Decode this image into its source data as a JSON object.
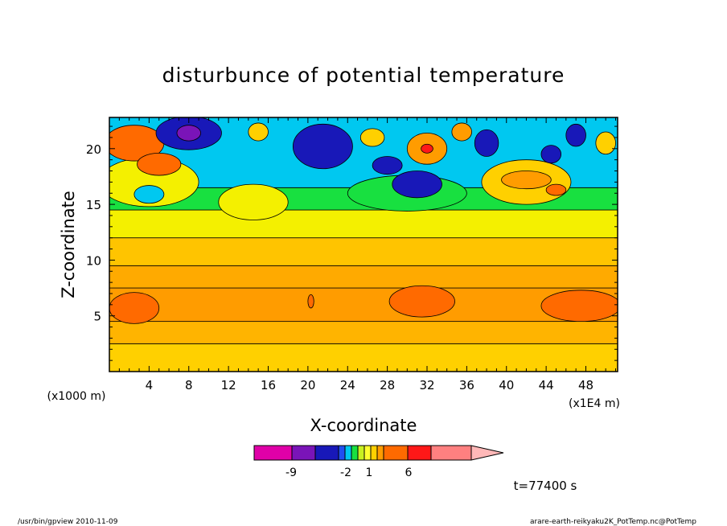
{
  "chart_data": {
    "type": "heatmap",
    "title": "disturbunce of potential temperature",
    "xlabel": "X-coordinate",
    "ylabel": "Z-coordinate",
    "x_unit_left": "(x1000 m)",
    "x_unit_right": "(x1E4 m)",
    "xlim": [
      0,
      51.2
    ],
    "ylim": [
      0,
      22.8
    ],
    "x_ticks": [
      "4",
      "8",
      "12",
      "16",
      "20",
      "24",
      "28",
      "32",
      "36",
      "40",
      "44",
      "48"
    ],
    "y_ticks": [
      "5",
      "10",
      "15",
      "20"
    ],
    "colorbar": {
      "tick_labels": [
        "-9",
        "-2",
        "1",
        "6"
      ],
      "colors": [
        "#e000a8",
        "#7a14b8",
        "#1818b8",
        "#2050f0",
        "#00c8f0",
        "#18e040",
        "#c8f020",
        "#ffff30",
        "#ffd000",
        "#ff9c00",
        "#ff6a00",
        "#ff1818",
        "#ff8080",
        "#ffb8b8"
      ]
    },
    "time_label": "t=77400 s",
    "footer_left": "/usr/bin/gpview  2010-11-09",
    "footer_right": "arare-earth-reikyaku2K_PotTemp.nc@PotTemp",
    "bands": [
      {
        "z_min": 0.0,
        "z_max": 2.5,
        "color": "#ffd000"
      },
      {
        "z_min": 2.5,
        "z_max": 4.5,
        "color": "#ffb400"
      },
      {
        "z_min": 4.5,
        "z_max": 7.5,
        "color": "#ff9c00"
      },
      {
        "z_min": 7.5,
        "z_max": 9.5,
        "color": "#ffaa00"
      },
      {
        "z_min": 9.5,
        "z_max": 12.0,
        "color": "#ffc400"
      },
      {
        "z_min": 12.0,
        "z_max": 14.5,
        "color": "#f4f000"
      },
      {
        "z_min": 14.5,
        "z_max": 16.5,
        "color": "#18e040"
      },
      {
        "z_min": 16.5,
        "z_max": 22.8,
        "color": "#00c8f0"
      }
    ],
    "blobs": [
      {
        "x": 2.5,
        "z": 5.7,
        "rx": 2.5,
        "rz": 1.4,
        "color": "#ff6a00"
      },
      {
        "x": 31.5,
        "z": 6.3,
        "rx": 3.3,
        "rz": 1.4,
        "color": "#ff6a00"
      },
      {
        "x": 47.5,
        "z": 5.9,
        "rx": 4.0,
        "rz": 1.4,
        "color": "#ff6a00"
      },
      {
        "x": 20.3,
        "z": 6.3,
        "rx": 0.3,
        "rz": 0.6,
        "color": "#ff6a00"
      },
      {
        "x": 4.0,
        "z": 17.0,
        "rx": 5.0,
        "rz": 2.2,
        "color": "#f4f000"
      },
      {
        "x": 14.5,
        "z": 15.2,
        "rx": 3.5,
        "rz": 1.6,
        "color": "#f4f000"
      },
      {
        "x": 30.0,
        "z": 16.0,
        "rx": 6.0,
        "rz": 1.6,
        "color": "#18e040"
      },
      {
        "x": 42.0,
        "z": 17.0,
        "rx": 4.5,
        "rz": 2.0,
        "color": "#ffd000"
      },
      {
        "x": 2.5,
        "z": 20.5,
        "rx": 3.0,
        "rz": 1.6,
        "color": "#ff6a00"
      },
      {
        "x": 5.0,
        "z": 18.6,
        "rx": 2.2,
        "rz": 1.0,
        "color": "#ff6a00"
      },
      {
        "x": 4.0,
        "z": 15.9,
        "rx": 1.5,
        "rz": 0.8,
        "color": "#00c8f0"
      },
      {
        "x": 8.0,
        "z": 21.4,
        "rx": 3.3,
        "rz": 1.5,
        "color": "#1818b8"
      },
      {
        "x": 8.0,
        "z": 21.4,
        "rx": 1.2,
        "rz": 0.7,
        "color": "#7a14b8"
      },
      {
        "x": 21.5,
        "z": 20.2,
        "rx": 3.0,
        "rz": 2.0,
        "color": "#1818b8"
      },
      {
        "x": 28.0,
        "z": 18.5,
        "rx": 1.5,
        "rz": 0.8,
        "color": "#1818b8"
      },
      {
        "x": 31.0,
        "z": 16.8,
        "rx": 2.5,
        "rz": 1.2,
        "color": "#1818b8"
      },
      {
        "x": 38.0,
        "z": 20.5,
        "rx": 1.2,
        "rz": 1.2,
        "color": "#1818b8"
      },
      {
        "x": 44.5,
        "z": 19.5,
        "rx": 1.0,
        "rz": 0.8,
        "color": "#1818b8"
      },
      {
        "x": 47.0,
        "z": 21.2,
        "rx": 1.0,
        "rz": 1.0,
        "color": "#1818b8"
      },
      {
        "x": 32.0,
        "z": 20.0,
        "rx": 2.0,
        "rz": 1.4,
        "color": "#ff9c00"
      },
      {
        "x": 32.0,
        "z": 20.0,
        "rx": 0.6,
        "rz": 0.4,
        "color": "#ff1818"
      },
      {
        "x": 15.0,
        "z": 21.5,
        "rx": 1.0,
        "rz": 0.8,
        "color": "#ffd000"
      },
      {
        "x": 26.5,
        "z": 21.0,
        "rx": 1.2,
        "rz": 0.8,
        "color": "#ffd000"
      },
      {
        "x": 35.5,
        "z": 21.5,
        "rx": 1.0,
        "rz": 0.8,
        "color": "#ff9c00"
      },
      {
        "x": 42.0,
        "z": 17.2,
        "rx": 2.5,
        "rz": 0.8,
        "color": "#ff9c00"
      },
      {
        "x": 45.0,
        "z": 16.3,
        "rx": 1.0,
        "rz": 0.5,
        "color": "#ff6a00"
      },
      {
        "x": 50.0,
        "z": 20.5,
        "rx": 1.0,
        "rz": 1.0,
        "color": "#ffd000"
      }
    ]
  }
}
